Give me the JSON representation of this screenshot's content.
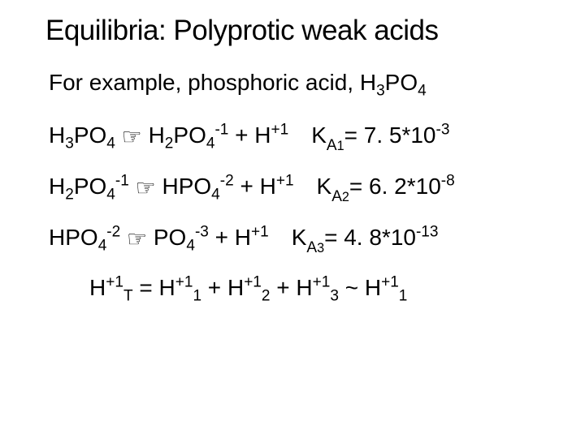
{
  "colors": {
    "text": "#000000",
    "bg": "#ffffff"
  },
  "title": "Equilibria: Polyprotic weak acids",
  "subtitle_prefix": "For example, phosphoric acid, H",
  "formula_main": {
    "sub1": "3",
    "mid": "PO",
    "sub2": "4"
  },
  "arrow_glyph": "☞",
  "eq1": {
    "l_a": "H",
    "l_a_sub": "3",
    "l_b": "PO",
    "l_b_sub": "4",
    "r_a": "H",
    "r_a_sub": "2",
    "r_b": "PO",
    "r_b_sub": "4",
    "r_b_sup": "-1",
    "plus": " + H",
    "h_sup": "+1",
    "k_label": "K",
    "k_sub1": "A",
    "k_sub2": "1",
    "k_eq": "= 7. 5*10",
    "k_sup": "-3"
  },
  "eq2": {
    "l_a": "H",
    "l_a_sub": "2",
    "l_b": "PO",
    "l_b_sub": "4",
    "l_b_sup": "-1",
    "r_a": "HPO",
    "r_a_sub": "4",
    "r_a_sup": "-2",
    "plus": " + H",
    "h_sup": "+1",
    "k_label": "K",
    "k_sub1": "A",
    "k_sub2": "2",
    "k_eq": "= 6. 2*10",
    "k_sup": "-8"
  },
  "eq3": {
    "l_a": "HPO",
    "l_a_sub": "4",
    "l_a_sup": "-2",
    "r_a": "PO",
    "r_a_sub": "4",
    "r_a_sup": "-3",
    "plus": " + H",
    "h_sup": "+1",
    "k_label": "K",
    "k_sub1": "A",
    "k_sub2": "3",
    "k_eq": "= 4. 8*10",
    "k_sup": "-13"
  },
  "summary": {
    "h": "H",
    "sup": "+1",
    "subT": "T",
    "eq": " = ",
    "sub1": "1",
    "plus": " + ",
    "sub2": "2",
    "sub3": "3",
    "approx": " ~ "
  }
}
